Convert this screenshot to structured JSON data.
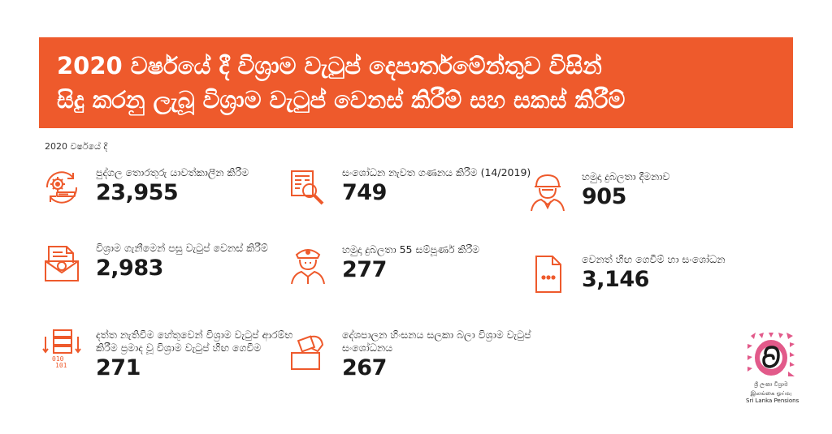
{
  "banner": {
    "line1": "2020 වර්ෂයේ දී විශ්‍රාම වැටුප් දෙපාර්තමේන්තුව විසින්",
    "line2": "සිදු කරනු ලැබූ විශ්‍රාම වැටුප් වෙනස් කිරීම් සහ සකස් කිරීම්"
  },
  "subtitle": "2020 වර්ෂයේ දී",
  "items": [
    {
      "icon": "gear-cycle-icon",
      "label": "පුද්ගල තොරතුරු යාවත්කාලීන කිරීම",
      "value": "23,955"
    },
    {
      "icon": "magnifier-document-icon",
      "label": "සංශෝධන නැවත ගණනය කිරීම (14/2019)",
      "value": "749"
    },
    {
      "icon": "soldier-helmet-icon",
      "label": "හමුදා දුබලතා දීමනාව",
      "value": "905"
    },
    {
      "icon": "envelope-document-icon",
      "label": "විශ්‍රාම ගැනීමෙන් පසු වැටුප් වෙනස් කිරීම්",
      "value": "2,983"
    },
    {
      "icon": "officer-cap-icon",
      "label": "හමුදා දුබලතා 55 සම්පූර්ණ කිරීම",
      "value": "277"
    },
    {
      "icon": "file-dots-icon",
      "label": "වෙනත් හිඟ ගෙවීම් හා සංශෝධන",
      "value": "3,146"
    },
    {
      "icon": "server-data-icon",
      "label": "දත්ත නැතිවීම හේතුවෙන් විශ්‍රාම වැටුප් ආරම්භ කිරීම ප්‍රමාද වූ විශ්‍රාම වැටුප් හිඟ ගෙවීම",
      "value": "271"
    },
    {
      "icon": "ballot-box-icon",
      "label": "දේශපාලන හිංසනය සලකා බලා විශ්‍රාම වැටුප් සංශෝධනය",
      "value": "267"
    }
  ],
  "logo": {
    "icon": "sri-lanka-pensions-logo",
    "sinhala": "ශ්‍රී ලංකා විශ්‍රාම",
    "tamil": "இலங்கை ஓய்வு",
    "english": "Sri Lanka Pensions"
  },
  "colors": {
    "accent": "#ee5a2c",
    "text": "#1e1e1e",
    "logo_pink": "#e25a8a"
  }
}
